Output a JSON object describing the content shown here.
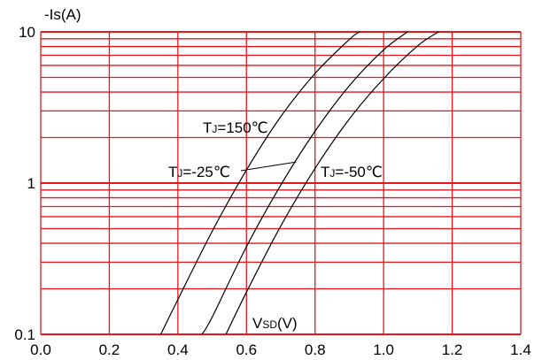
{
  "chart_data": {
    "type": "line",
    "title": "",
    "xlabel": "VSD(V)",
    "ylabel": "-Is(A)",
    "xlim": [
      0.0,
      1.4
    ],
    "ylim": [
      0.1,
      10
    ],
    "y_scale": "log",
    "grid": true,
    "x_ticks": [
      "0.0",
      "0.2",
      "0.4",
      "0.6",
      "0.8",
      "1.0",
      "1.2",
      "1.4"
    ],
    "y_ticks": [
      "0.1",
      "1",
      "10"
    ],
    "series": [
      {
        "name": "TJ=150℃",
        "points": [
          [
            0.35,
            0.1
          ],
          [
            0.4,
            0.17
          ],
          [
            0.5,
            0.48
          ],
          [
            0.6,
            1.22
          ],
          [
            0.7,
            2.75
          ],
          [
            0.8,
            5.3
          ],
          [
            0.9,
            8.9
          ],
          [
            0.93,
            10
          ]
        ]
      },
      {
        "name": "TJ=-25℃",
        "points": [
          [
            0.47,
            0.1
          ],
          [
            0.5,
            0.13
          ],
          [
            0.6,
            0.38
          ],
          [
            0.7,
            0.97
          ],
          [
            0.8,
            2.2
          ],
          [
            0.9,
            4.4
          ],
          [
            1.0,
            7.6
          ],
          [
            1.07,
            10
          ]
        ]
      },
      {
        "name": "TJ=-50℃",
        "points": [
          [
            0.54,
            0.1
          ],
          [
            0.6,
            0.19
          ],
          [
            0.7,
            0.52
          ],
          [
            0.8,
            1.25
          ],
          [
            0.9,
            2.65
          ],
          [
            1.0,
            4.9
          ],
          [
            1.1,
            8.1
          ],
          [
            1.16,
            10
          ]
        ]
      }
    ],
    "annotations": [
      {
        "text": "TJ=150℃",
        "series": "TJ=150℃",
        "sub": "J"
      },
      {
        "text": "TJ=-25℃",
        "series": "TJ=-25℃",
        "sub": "J"
      },
      {
        "text": "TJ=-50℃",
        "series": "TJ=-50℃",
        "sub": "J"
      }
    ],
    "colors": {
      "grid": "#e8151b",
      "curve": "#000000",
      "text": "#000000"
    }
  }
}
